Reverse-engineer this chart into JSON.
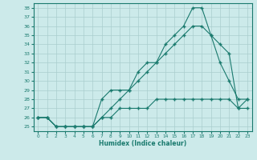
{
  "xlabel": "Humidex (Indice chaleur)",
  "x_values": [
    0,
    1,
    2,
    3,
    4,
    5,
    6,
    7,
    8,
    9,
    10,
    11,
    12,
    13,
    14,
    15,
    16,
    17,
    18,
    19,
    20,
    21,
    22,
    23
  ],
  "line1_y": [
    26,
    26,
    25,
    25,
    25,
    25,
    25,
    28,
    29,
    29,
    29,
    31,
    32,
    32,
    34,
    35,
    36,
    38,
    38,
    35,
    32,
    30,
    28,
    28
  ],
  "line2_y": [
    26,
    26,
    25,
    25,
    25,
    25,
    25,
    26,
    27,
    28,
    29,
    30,
    31,
    32,
    33,
    34,
    35,
    36,
    36,
    35,
    34,
    33,
    27,
    28
  ],
  "line3_y": [
    26,
    26,
    25,
    25,
    25,
    25,
    25,
    26,
    26,
    27,
    27,
    27,
    27,
    28,
    28,
    28,
    28,
    28,
    28,
    28,
    28,
    28,
    27,
    27
  ],
  "line_color": "#1a7a6e",
  "bg_color": "#cceaea",
  "grid_color": "#aacece",
  "ylim": [
    25,
    38
  ],
  "xlim": [
    0,
    23
  ],
  "yticks": [
    25,
    26,
    27,
    28,
    29,
    30,
    31,
    32,
    33,
    34,
    35,
    36,
    37,
    38
  ],
  "xticks": [
    0,
    1,
    2,
    3,
    4,
    5,
    6,
    7,
    8,
    9,
    10,
    11,
    12,
    13,
    14,
    15,
    16,
    17,
    18,
    19,
    20,
    21,
    22,
    23
  ]
}
